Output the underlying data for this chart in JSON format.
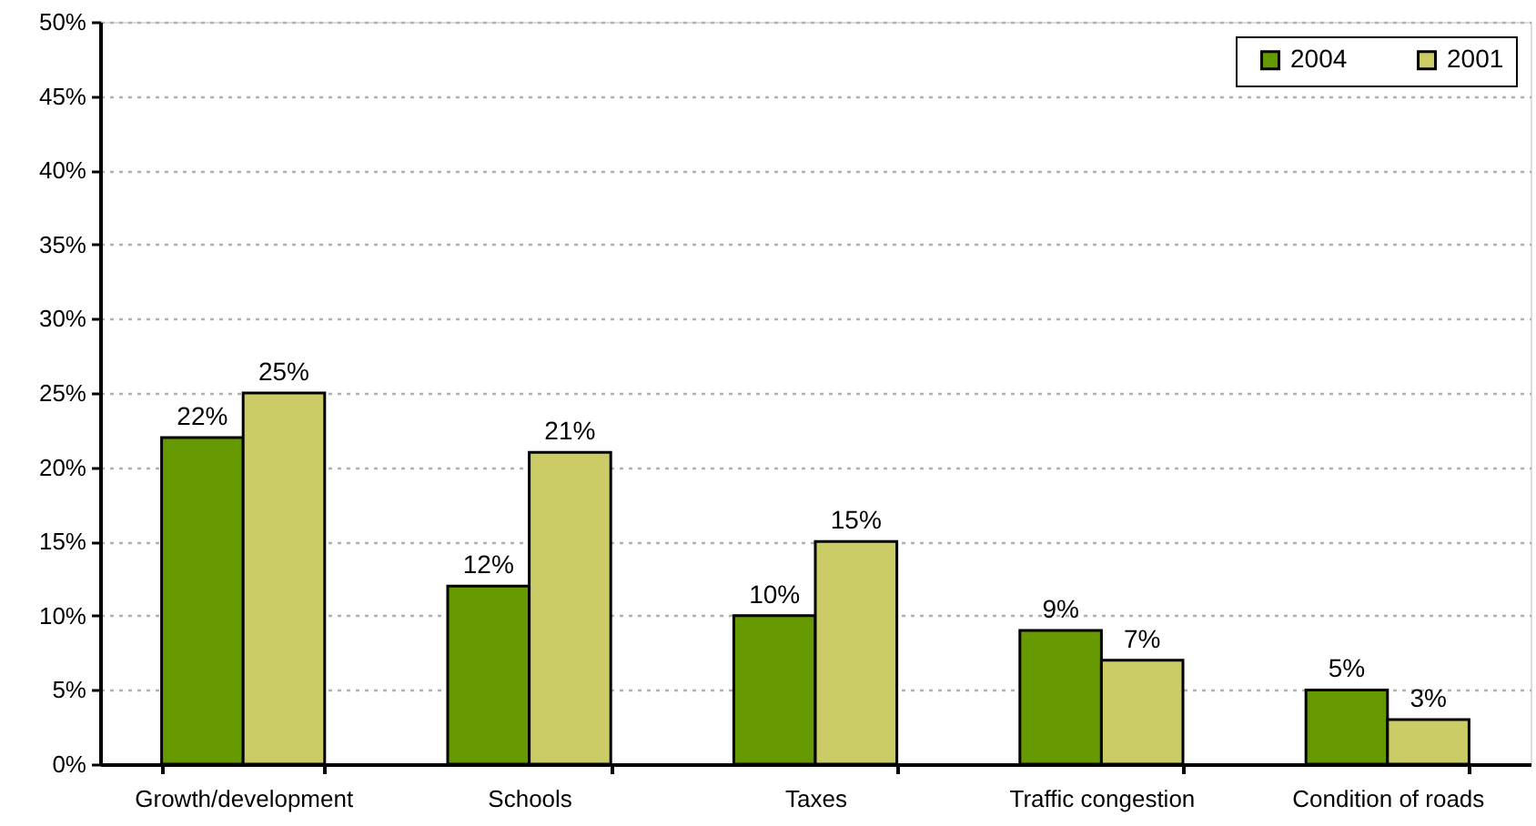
{
  "chart_data": {
    "type": "bar",
    "categories": [
      "Growth/development",
      "Schools",
      "Taxes",
      "Traffic congestion",
      "Condition of roads"
    ],
    "series": [
      {
        "name": "2004",
        "color": "#669900",
        "values": [
          22,
          12,
          10,
          9,
          5
        ],
        "value_labels": [
          "22%",
          "12%",
          "10%",
          "9%",
          "5%"
        ]
      },
      {
        "name": "2001",
        "color": "#cccc66",
        "values": [
          25,
          21,
          15,
          7,
          3
        ],
        "value_labels": [
          "25%",
          "21%",
          "15%",
          "7%",
          "3%"
        ]
      }
    ],
    "ylim": [
      0,
      50
    ],
    "yticks": [
      {
        "value": 0,
        "label": "0%"
      },
      {
        "value": 5,
        "label": "5%"
      },
      {
        "value": 10,
        "label": "10%"
      },
      {
        "value": 15,
        "label": "15%"
      },
      {
        "value": 20,
        "label": "20%"
      },
      {
        "value": 25,
        "label": "25%"
      },
      {
        "value": 30,
        "label": "30%"
      },
      {
        "value": 35,
        "label": "35%"
      },
      {
        "value": 40,
        "label": "40%"
      },
      {
        "value": 45,
        "label": "45%"
      },
      {
        "value": 50,
        "label": "50%"
      }
    ],
    "grid": "y",
    "legend": "top right"
  }
}
